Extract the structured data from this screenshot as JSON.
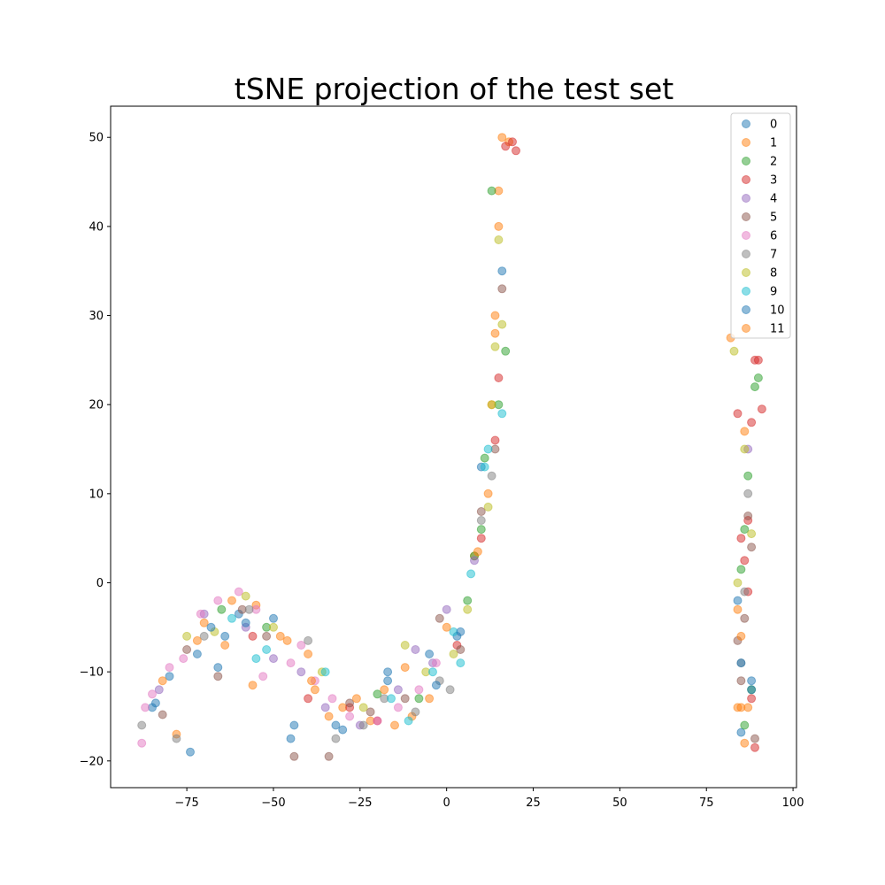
{
  "chart_data": {
    "type": "scatter",
    "title": "tSNE projection of the test set",
    "xlabel": "",
    "ylabel": "",
    "xlim": [
      -97,
      101
    ],
    "ylim": [
      -23,
      53.5
    ],
    "xticks": [
      -75,
      -50,
      -25,
      0,
      25,
      50,
      75,
      100
    ],
    "yticks": [
      -20,
      -10,
      0,
      10,
      20,
      30,
      40,
      50
    ],
    "xtick_labels": [
      "−75",
      "−50",
      "−25",
      "0",
      "25",
      "50",
      "75",
      "100"
    ],
    "ytick_labels": [
      "−20",
      "−10",
      "0",
      "10",
      "20",
      "30",
      "40",
      "50"
    ],
    "grid": false,
    "legend_position": "top-right",
    "marker_alpha": 0.5,
    "series": [
      {
        "name": "0",
        "color": "#1f77b4",
        "points": [
          [
            -85,
            -14
          ],
          [
            -80,
            -10.5
          ],
          [
            -72,
            -8
          ],
          [
            -66,
            -9.5
          ],
          [
            -60,
            -3.5
          ],
          [
            -45,
            -17.5
          ],
          [
            -32,
            -16
          ],
          [
            -17,
            -10
          ],
          [
            -5,
            -8
          ],
          [
            3,
            -6
          ],
          [
            10,
            13
          ],
          [
            16,
            35
          ],
          [
            84,
            -2
          ],
          [
            85,
            -16.8
          ],
          [
            88,
            -11
          ]
        ]
      },
      {
        "name": "1",
        "color": "#ff7f0e",
        "points": [
          [
            -78,
            -17
          ],
          [
            -70,
            -4.5
          ],
          [
            -62,
            -2
          ],
          [
            -55,
            -2.5
          ],
          [
            -48,
            -6
          ],
          [
            -40,
            -8
          ],
          [
            -38,
            -12
          ],
          [
            -30,
            -14
          ],
          [
            -22,
            -15.5
          ],
          [
            -15,
            -16
          ],
          [
            -10,
            -15
          ],
          [
            8,
            3
          ],
          [
            12,
            10
          ],
          [
            13,
            20
          ],
          [
            14,
            28
          ],
          [
            15,
            44
          ],
          [
            16,
            50
          ],
          [
            18,
            49.5
          ],
          [
            82,
            27.5
          ],
          [
            84,
            -3
          ],
          [
            85,
            -14
          ],
          [
            86,
            17
          ]
        ]
      },
      {
        "name": "2",
        "color": "#2ca02c",
        "points": [
          [
            -65,
            -3
          ],
          [
            -52,
            -5
          ],
          [
            -20,
            -12.5
          ],
          [
            -8,
            -13
          ],
          [
            6,
            -2
          ],
          [
            8,
            3
          ],
          [
            10,
            6
          ],
          [
            11,
            14
          ],
          [
            13,
            44
          ],
          [
            15,
            20
          ],
          [
            17,
            26
          ],
          [
            88,
            -12
          ],
          [
            85,
            1.5
          ],
          [
            86,
            6
          ],
          [
            87,
            12
          ],
          [
            89,
            22
          ],
          [
            90,
            23
          ],
          [
            86,
            -16
          ]
        ]
      },
      {
        "name": "3",
        "color": "#d62728",
        "points": [
          [
            -56,
            -6
          ],
          [
            -40,
            -13
          ],
          [
            -28,
            -14
          ],
          [
            -20,
            -15.5
          ],
          [
            3,
            -7
          ],
          [
            10,
            5
          ],
          [
            14,
            16
          ],
          [
            15,
            23
          ],
          [
            17,
            49
          ],
          [
            19,
            49.5
          ],
          [
            20,
            48.5
          ],
          [
            84,
            19
          ],
          [
            85,
            5
          ],
          [
            86,
            2.5
          ],
          [
            87,
            7
          ],
          [
            88,
            18
          ],
          [
            89,
            25
          ],
          [
            90,
            25
          ],
          [
            91,
            19.5
          ],
          [
            87,
            -1
          ],
          [
            89,
            -18.5
          ],
          [
            88,
            -13
          ]
        ]
      },
      {
        "name": "4",
        "color": "#9467bd",
        "points": [
          [
            -83,
            -12
          ],
          [
            -70,
            -3.5
          ],
          [
            -58,
            -5
          ],
          [
            -50,
            -8.5
          ],
          [
            -42,
            -10
          ],
          [
            -35,
            -14
          ],
          [
            -25,
            -16
          ],
          [
            -14,
            -12
          ],
          [
            -9,
            -7.5
          ],
          [
            -4,
            -9
          ],
          [
            0,
            -3
          ],
          [
            8,
            2.5
          ],
          [
            87,
            15
          ]
        ]
      },
      {
        "name": "5",
        "color": "#8c564b",
        "points": [
          [
            -82,
            -14.8
          ],
          [
            -75,
            -7.5
          ],
          [
            -66,
            -10.5
          ],
          [
            -59,
            -3
          ],
          [
            -52,
            -6
          ],
          [
            -44,
            -19.5
          ],
          [
            -34,
            -19.5
          ],
          [
            -28,
            -13.5
          ],
          [
            -22,
            -14.5
          ],
          [
            -12,
            -13
          ],
          [
            -2,
            -4
          ],
          [
            4,
            -7.5
          ],
          [
            10,
            8
          ],
          [
            14,
            15
          ],
          [
            16,
            33
          ],
          [
            84,
            -6.5
          ],
          [
            85,
            -11
          ],
          [
            86,
            -4
          ],
          [
            87,
            7.5
          ],
          [
            88,
            4
          ],
          [
            89,
            -17.5
          ]
        ]
      },
      {
        "name": "6",
        "color": "#e377c2",
        "points": [
          [
            -88,
            -18
          ],
          [
            -87,
            -14
          ],
          [
            -85,
            -12.5
          ],
          [
            -80,
            -9.5
          ],
          [
            -76,
            -8.5
          ],
          [
            -71,
            -3.5
          ],
          [
            -66,
            -2
          ],
          [
            -60,
            -1
          ],
          [
            -55,
            -3
          ],
          [
            -53,
            -10.5
          ],
          [
            -45,
            -9
          ],
          [
            -42,
            -7
          ],
          [
            -38,
            -11
          ],
          [
            -33,
            -13
          ],
          [
            -28,
            -15
          ],
          [
            -20,
            -15.5
          ],
          [
            -14,
            -14
          ],
          [
            -8,
            -12
          ],
          [
            -3,
            -9
          ]
        ]
      },
      {
        "name": "7",
        "color": "#7f7f7f",
        "points": [
          [
            -88,
            -16
          ],
          [
            -78,
            -17.5
          ],
          [
            -70,
            -6
          ],
          [
            -57,
            -3
          ],
          [
            -40,
            -6.5
          ],
          [
            -32,
            -17.5
          ],
          [
            -24,
            -16
          ],
          [
            -18,
            -13
          ],
          [
            -9,
            -14.5
          ],
          [
            -2,
            -11
          ],
          [
            1,
            -12
          ],
          [
            10,
            7
          ],
          [
            13,
            12
          ],
          [
            85,
            -9
          ],
          [
            86,
            -1
          ],
          [
            87,
            10
          ]
        ]
      },
      {
        "name": "8",
        "color": "#bcbd22",
        "points": [
          [
            -75,
            -6
          ],
          [
            -67,
            -5.5
          ],
          [
            -58,
            -1.5
          ],
          [
            -50,
            -5
          ],
          [
            -36,
            -10
          ],
          [
            -24,
            -14
          ],
          [
            -12,
            -7
          ],
          [
            -6,
            -10
          ],
          [
            2,
            -8
          ],
          [
            6,
            -3
          ],
          [
            12,
            8.5
          ],
          [
            13,
            20
          ],
          [
            14,
            26.5
          ],
          [
            15,
            38.5
          ],
          [
            16,
            29
          ],
          [
            83,
            26
          ],
          [
            86,
            15
          ],
          [
            88,
            5.5
          ],
          [
            84,
            0
          ]
        ]
      },
      {
        "name": "9",
        "color": "#17becf",
        "points": [
          [
            -62,
            -4
          ],
          [
            -55,
            -8.5
          ],
          [
            -52,
            -7.5
          ],
          [
            -35,
            -10
          ],
          [
            -16,
            -13
          ],
          [
            -11,
            -15.5
          ],
          [
            -4,
            -10
          ],
          [
            2,
            -5.5
          ],
          [
            4,
            -9
          ],
          [
            7,
            1
          ],
          [
            11,
            13
          ],
          [
            12,
            15
          ],
          [
            16,
            19
          ]
        ]
      },
      {
        "name": "10",
        "color": "#1f77b4",
        "points": [
          [
            -84,
            -13.5
          ],
          [
            -74,
            -19
          ],
          [
            -68,
            -5
          ],
          [
            -64,
            -6
          ],
          [
            -58,
            -4.5
          ],
          [
            -50,
            -4
          ],
          [
            -44,
            -16
          ],
          [
            -30,
            -16.5
          ],
          [
            -17,
            -11
          ],
          [
            -3,
            -11.5
          ],
          [
            4,
            -5.5
          ],
          [
            85,
            -9
          ],
          [
            88,
            -12
          ]
        ]
      },
      {
        "name": "11",
        "color": "#ff7f0e",
        "points": [
          [
            -82,
            -11
          ],
          [
            -72,
            -6.5
          ],
          [
            -64,
            -7
          ],
          [
            -56,
            -11.5
          ],
          [
            -46,
            -6.5
          ],
          [
            -39,
            -11
          ],
          [
            -34,
            -15
          ],
          [
            -26,
            -13
          ],
          [
            -18,
            -12
          ],
          [
            -12,
            -9.5
          ],
          [
            -5,
            -13
          ],
          [
            0,
            -5
          ],
          [
            9,
            3.5
          ],
          [
            14,
            30
          ],
          [
            15,
            40
          ],
          [
            84,
            -14
          ],
          [
            85,
            -6
          ],
          [
            86,
            -18
          ],
          [
            87,
            -14
          ]
        ]
      }
    ]
  }
}
